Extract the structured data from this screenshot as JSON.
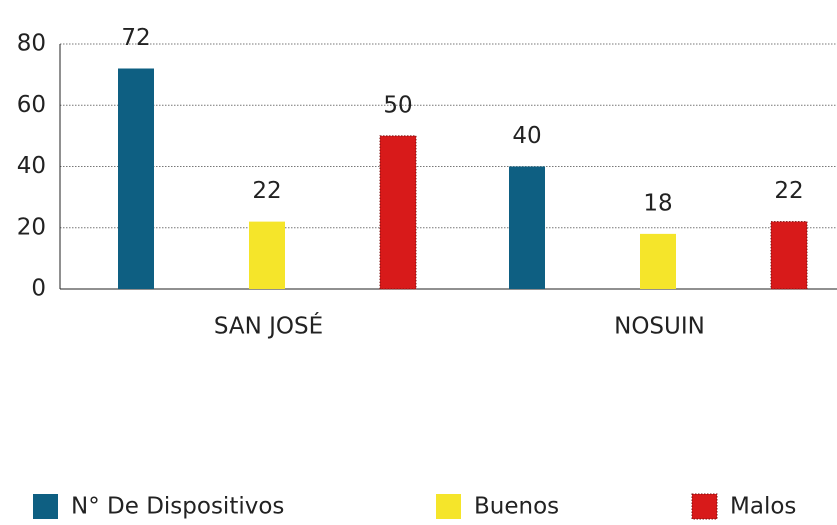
{
  "chart_data": {
    "type": "bar",
    "categories": [
      "SAN JOSÉ",
      "NOSUIN"
    ],
    "series": [
      {
        "name": "N° De Dispositivos",
        "color": "#0e5f82",
        "values": [
          72,
          40
        ]
      },
      {
        "name": "Buenos",
        "color": "#f5e52a",
        "values": [
          22,
          18
        ]
      },
      {
        "name": "Malos",
        "color": "#d81a1a",
        "values": [
          50,
          22
        ]
      }
    ],
    "ylim": [
      0,
      80
    ],
    "yticks": [
      0,
      20,
      40,
      60,
      80
    ],
    "grid": true,
    "legend": "bottom"
  }
}
